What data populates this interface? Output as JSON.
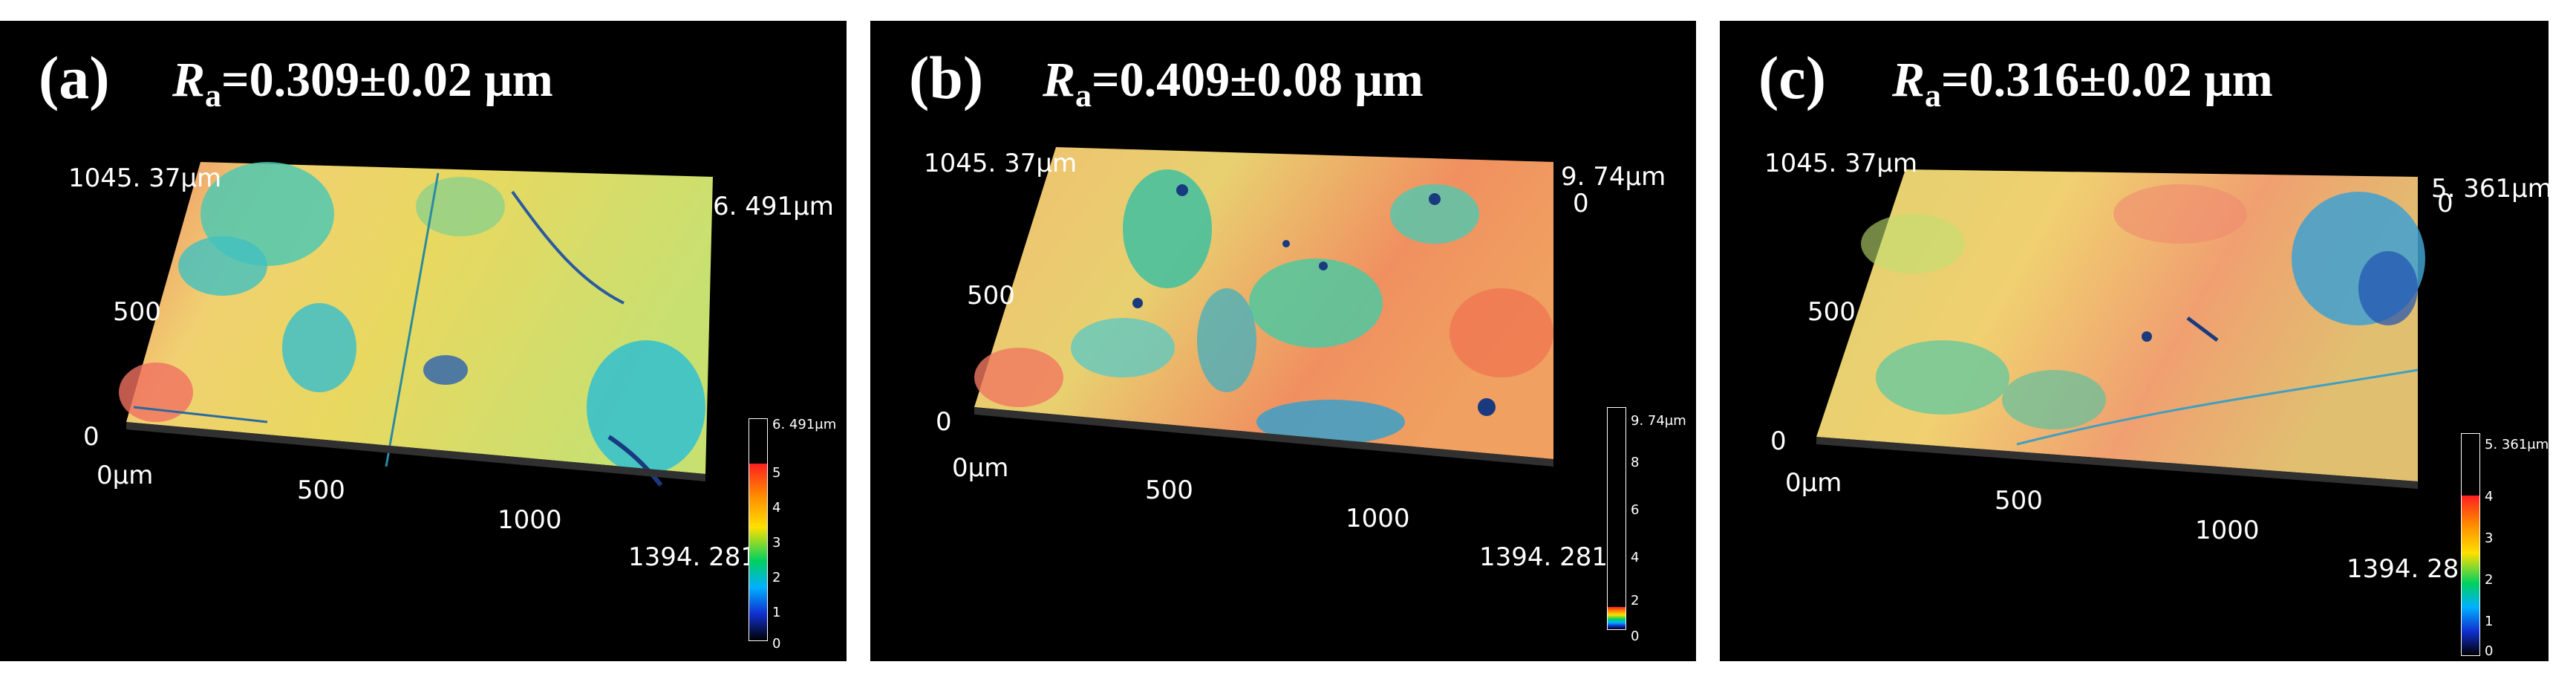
{
  "panels": [
    {
      "letter": "(a)",
      "ra_symbol": "R",
      "ra_sub": "a",
      "ra_value": "=0.309±0.02 μm",
      "y_max": "1045. 37μm",
      "y_mid": "500",
      "y_zero": "0",
      "z_label": "6. 491μm",
      "z_zero": "",
      "x_origin": "0μm",
      "x_500": "500",
      "x_1000": "1000",
      "x_max": "1394. 281",
      "cbar_top": "6. 491μm",
      "cbar_ticks": [
        "5",
        "4",
        "3",
        "2",
        "1",
        "0"
      ],
      "cbar_fraction": 0.8
    },
    {
      "letter": "(b)",
      "ra_symbol": "R",
      "ra_sub": "a",
      "ra_value": "=0.409±0.08 μm",
      "y_max": "1045. 37μm",
      "y_mid": "500",
      "y_zero": "0",
      "z_label": "9. 74μm",
      "z_zero": "0",
      "x_origin": "0μm",
      "x_500": "500",
      "x_1000": "1000",
      "x_max": "1394. 281",
      "cbar_top": "9. 74μm",
      "cbar_ticks": [
        "8",
        "6",
        "4",
        "2",
        "0"
      ],
      "cbar_fraction": 0.1
    },
    {
      "letter": "(c)",
      "ra_symbol": "R",
      "ra_sub": "a",
      "ra_value": "=0.316±0.02 μm",
      "y_max": "1045. 37μm",
      "y_mid": "500",
      "y_zero": "0",
      "z_label": "5. 361μm",
      "z_zero": "0",
      "x_origin": "0μm",
      "x_500": "500",
      "x_1000": "1000",
      "x_max": "1394. 28´",
      "cbar_top": "5. 361μm",
      "cbar_ticks": [
        "4",
        "3",
        "2",
        "1",
        "0"
      ],
      "cbar_fraction": 0.72
    }
  ],
  "colors": {
    "background": "#000000",
    "surface_high": "#f07a5a",
    "surface_mid": "#e8d060",
    "surface_low": "#40c8c0",
    "pit": "#1a3a90"
  }
}
